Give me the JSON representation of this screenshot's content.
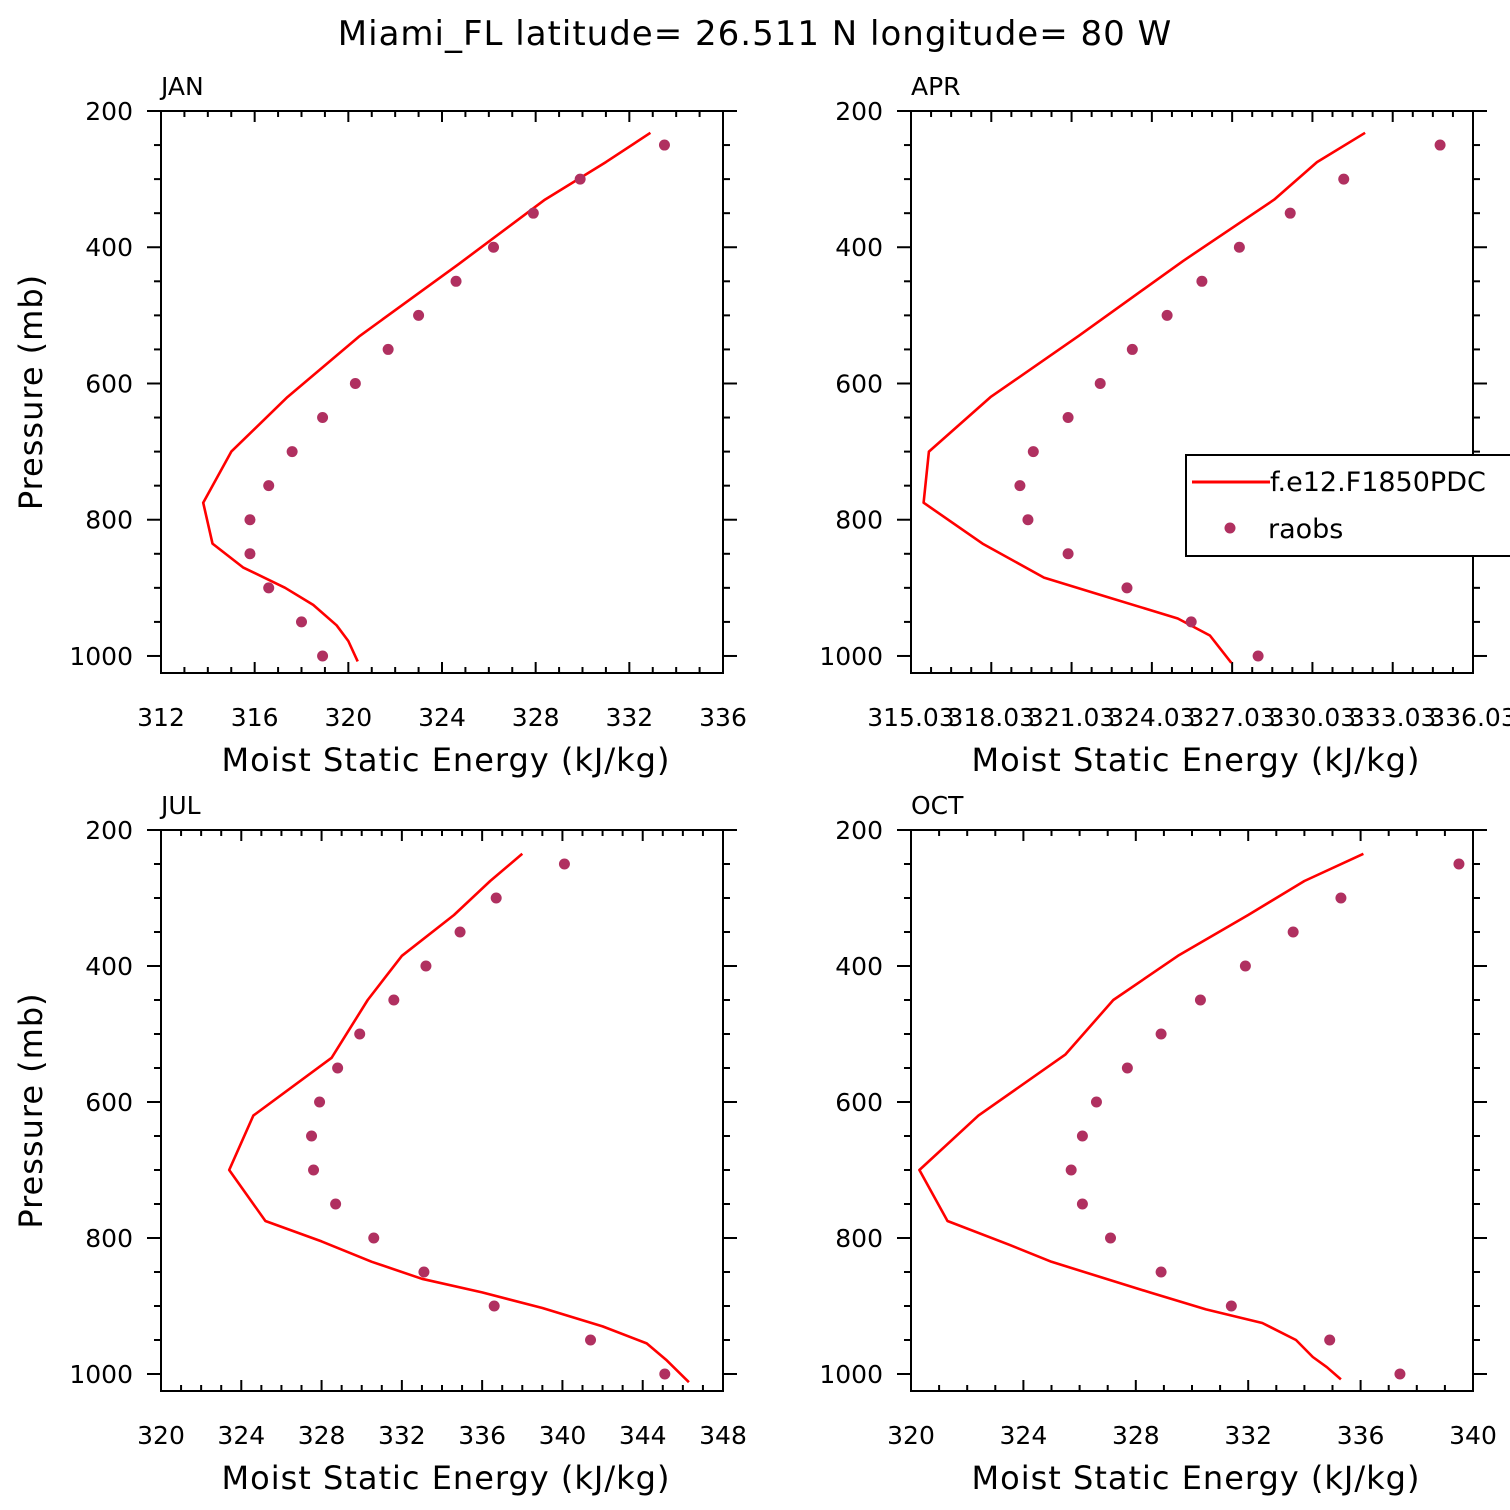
{
  "title": "Miami_FL  latitude= 26.511 N longitude= 80 W",
  "legend": {
    "model_label": "f.e12.F1850PDC",
    "obs_label": "raobs"
  },
  "colors": {
    "model": "#ff0000",
    "obs": "#b03060"
  },
  "chart_data": [
    {
      "type": "line",
      "panel": "JAN",
      "xlabel": "Moist Static Energy (kJ/kg)",
      "ylabel": "Pressure (mb)",
      "xlim": [
        312,
        336
      ],
      "ylim": [
        1025,
        200
      ],
      "xticks": [
        312,
        316,
        320,
        324,
        328,
        332,
        336
      ],
      "xtick_labels": [
        "312",
        "316",
        "320",
        "324",
        "328",
        "332",
        "336"
      ],
      "yticks": [
        200,
        400,
        600,
        800,
        1000
      ],
      "series": [
        {
          "name": "f.e12.F1850PDC",
          "kind": "line",
          "x": [
            320.4,
            320.0,
            319.5,
            318.5,
            317.3,
            315.5,
            314.2,
            313.8,
            315.0,
            317.4,
            320.5,
            324.7,
            328.4,
            331.0,
            332.9
          ],
          "y": [
            1008,
            978,
            955,
            925,
            900,
            870,
            835,
            775,
            700,
            620,
            530,
            425,
            330,
            275,
            232
          ]
        },
        {
          "name": "raobs",
          "kind": "scatter",
          "x": [
            318.9,
            318.0,
            316.6,
            315.8,
            315.8,
            316.6,
            317.6,
            318.9,
            320.3,
            321.7,
            323.0,
            324.6,
            326.2,
            327.9,
            329.9,
            333.5
          ],
          "y": [
            1000,
            950,
            900,
            850,
            800,
            750,
            700,
            650,
            600,
            550,
            500,
            450,
            400,
            350,
            300,
            250
          ]
        }
      ]
    },
    {
      "type": "line",
      "panel": "APR",
      "xlabel": "Moist Static Energy (kJ/kg)",
      "ylabel": "",
      "xlim": [
        315.03,
        336.03
      ],
      "ylim": [
        1025,
        200
      ],
      "xticks": [
        315.03,
        318.03,
        321.03,
        324.03,
        327.03,
        330.03,
        333.03,
        336.03
      ],
      "xtick_labels": [
        "315.03",
        "318.03",
        "321.03",
        "324.03",
        "327.03",
        "330.03",
        "333.03",
        "336.03"
      ],
      "yticks": [
        200,
        400,
        600,
        800,
        1000
      ],
      "series": [
        {
          "name": "f.e12.F1850PDC",
          "kind": "line",
          "x": [
            327.0,
            326.2,
            325.0,
            322.5,
            320.0,
            317.7,
            315.5,
            315.7,
            318.0,
            321.3,
            325.2,
            328.6,
            330.2,
            332.0
          ],
          "y": [
            1010,
            970,
            945,
            915,
            885,
            835,
            775,
            700,
            620,
            530,
            420,
            330,
            275,
            232
          ]
        },
        {
          "name": "raobs",
          "kind": "scatter",
          "x": [
            328.0,
            325.5,
            323.1,
            320.9,
            319.4,
            319.1,
            319.6,
            320.9,
            322.1,
            323.3,
            324.6,
            325.9,
            327.3,
            329.2,
            331.2,
            334.8
          ],
          "y": [
            1000,
            950,
            900,
            850,
            800,
            750,
            700,
            650,
            600,
            550,
            500,
            450,
            400,
            350,
            300,
            250
          ]
        }
      ]
    },
    {
      "type": "line",
      "panel": "JUL",
      "xlabel": "Moist Static Energy (kJ/kg)",
      "ylabel": "Pressure (mb)",
      "xlim": [
        320,
        348
      ],
      "ylim": [
        1025,
        200
      ],
      "xticks": [
        320,
        324,
        328,
        332,
        336,
        340,
        344,
        348
      ],
      "xtick_labels": [
        "320",
        "324",
        "328",
        "332",
        "336",
        "340",
        "344",
        "348"
      ],
      "yticks": [
        200,
        400,
        600,
        800,
        1000
      ],
      "series": [
        {
          "name": "f.e12.F1850PDC",
          "kind": "line",
          "x": [
            346.3,
            345.2,
            344.2,
            342.0,
            339.0,
            336.0,
            333.0,
            330.5,
            328.0,
            325.2,
            323.4,
            324.6,
            328.5,
            330.3,
            332.0,
            334.6,
            336.4,
            338.0
          ],
          "y": [
            1012,
            980,
            955,
            930,
            903,
            880,
            860,
            835,
            805,
            775,
            700,
            620,
            535,
            450,
            385,
            325,
            275,
            235
          ]
        },
        {
          "name": "raobs",
          "kind": "scatter",
          "x": [
            345.1,
            341.4,
            336.6,
            333.1,
            330.6,
            328.7,
            327.6,
            327.5,
            327.9,
            328.8,
            329.9,
            331.6,
            333.2,
            334.9,
            336.7,
            340.1
          ],
          "y": [
            1000,
            950,
            900,
            850,
            800,
            750,
            700,
            650,
            600,
            550,
            500,
            450,
            400,
            350,
            300,
            250
          ]
        }
      ]
    },
    {
      "type": "line",
      "panel": "OCT",
      "xlabel": "Moist Static Energy (kJ/kg)",
      "ylabel": "",
      "xlim": [
        320,
        340
      ],
      "ylim": [
        1025,
        200
      ],
      "xticks": [
        320,
        324,
        328,
        332,
        336,
        340
      ],
      "xtick_labels": [
        "320",
        "324",
        "328",
        "332",
        "336",
        "340"
      ],
      "yticks": [
        200,
        400,
        600,
        800,
        1000
      ],
      "series": [
        {
          "name": "f.e12.F1850PDC",
          "kind": "line",
          "x": [
            335.3,
            334.8,
            334.3,
            333.7,
            332.5,
            330.5,
            328.5,
            325.0,
            323.5,
            321.3,
            320.3,
            322.4,
            325.5,
            327.2,
            329.5,
            332.0,
            334.0,
            336.1
          ],
          "y": [
            1008,
            990,
            975,
            950,
            925,
            905,
            880,
            835,
            810,
            775,
            700,
            620,
            530,
            450,
            385,
            325,
            275,
            235
          ]
        },
        {
          "name": "raobs",
          "kind": "scatter",
          "x": [
            337.4,
            334.9,
            331.4,
            328.9,
            327.1,
            326.1,
            325.7,
            326.1,
            326.6,
            327.7,
            328.9,
            330.3,
            331.9,
            333.6,
            335.3,
            339.5
          ],
          "y": [
            1000,
            950,
            900,
            850,
            800,
            750,
            700,
            650,
            600,
            550,
            500,
            450,
            400,
            350,
            300,
            250
          ]
        }
      ]
    }
  ]
}
